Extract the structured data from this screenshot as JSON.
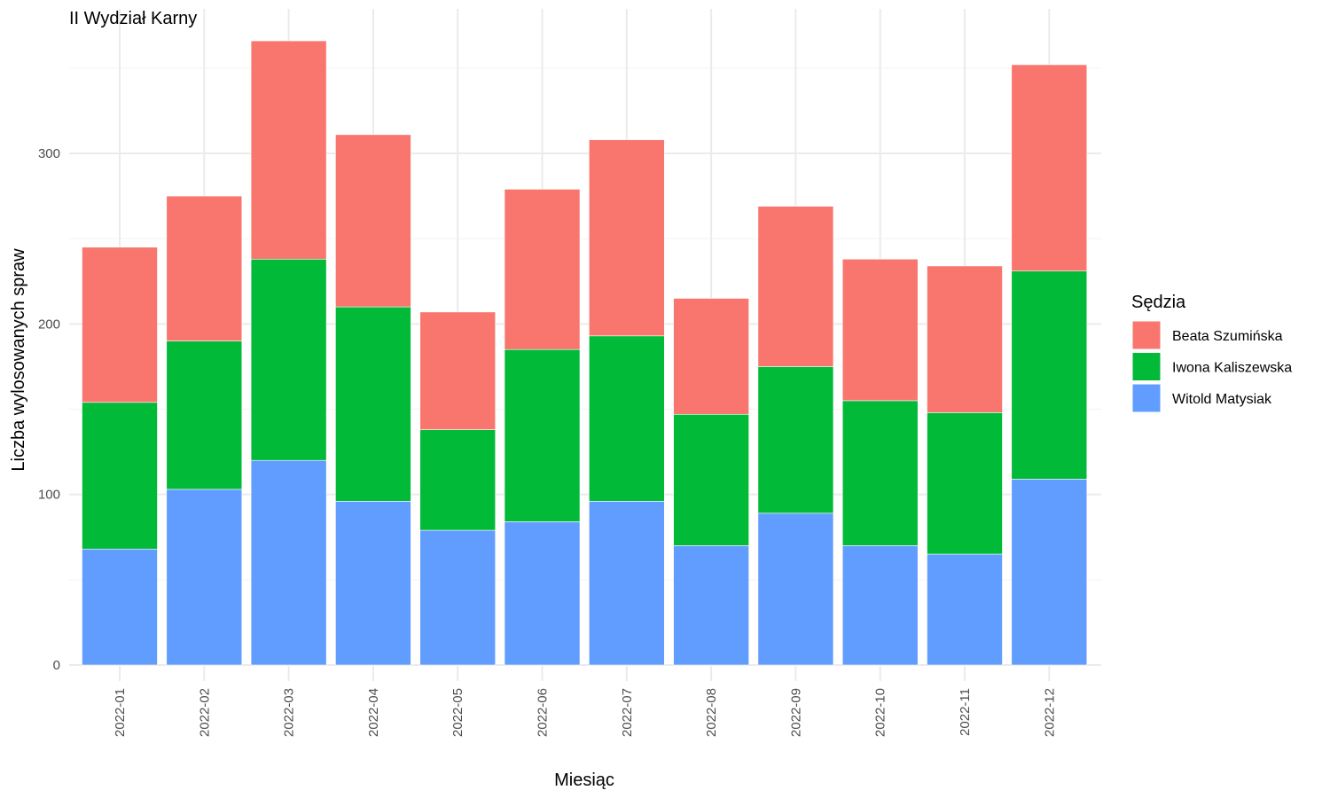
{
  "chart_data": {
    "type": "bar",
    "stacked": true,
    "title": "II Wydział Karny",
    "xlabel": "Miesiąc",
    "ylabel": "Liczba wylosowanych spraw",
    "ylim": [
      0,
      380
    ],
    "yticks": [
      0,
      100,
      200,
      300
    ],
    "grid": true,
    "legend": {
      "title": "Sędzia",
      "position": "right"
    },
    "categories": [
      "2022-01",
      "2022-02",
      "2022-03",
      "2022-04",
      "2022-05",
      "2022-06",
      "2022-07",
      "2022-08",
      "2022-09",
      "2022-10",
      "2022-11",
      "2022-12"
    ],
    "series": [
      {
        "name": "Witold Matysiak",
        "color": "#619CFF",
        "values": [
          68,
          103,
          120,
          96,
          79,
          84,
          96,
          70,
          89,
          70,
          65,
          109
        ]
      },
      {
        "name": "Iwona Kaliszewska",
        "color": "#00BA38",
        "values": [
          86,
          87,
          118,
          114,
          59,
          101,
          97,
          77,
          86,
          85,
          83,
          122
        ]
      },
      {
        "name": "Beata Szumińska",
        "color": "#F8766D",
        "values": [
          91,
          85,
          128,
          101,
          69,
          94,
          115,
          68,
          94,
          83,
          86,
          121
        ]
      }
    ],
    "legend_order": [
      "Beata Szumińska",
      "Iwona Kaliszewska",
      "Witold Matysiak"
    ]
  }
}
